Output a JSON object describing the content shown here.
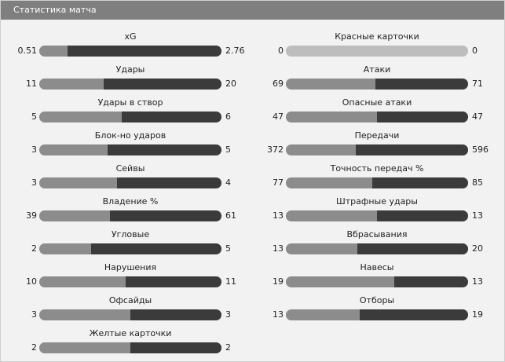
{
  "header": {
    "title": "Статистика матча"
  },
  "colors": {
    "home": "#8c8c8c",
    "away": "#3b3b3b",
    "empty": "#bdbdbd",
    "header_bg": "#7f7f7f"
  },
  "left_stats": [
    {
      "label": "xG",
      "home": "0.51",
      "away": "2.76",
      "home_value": 0.51,
      "away_value": 2.76
    },
    {
      "label": "Удары",
      "home": "11",
      "away": "20",
      "home_value": 11,
      "away_value": 20
    },
    {
      "label": "Удары в створ",
      "home": "5",
      "away": "6",
      "home_value": 5,
      "away_value": 6
    },
    {
      "label": "Блок-но ударов",
      "home": "3",
      "away": "5",
      "home_value": 3,
      "away_value": 5
    },
    {
      "label": "Сейвы",
      "home": "3",
      "away": "4",
      "home_value": 3,
      "away_value": 4
    },
    {
      "label": "Владение %",
      "home": "39",
      "away": "61",
      "home_value": 39,
      "away_value": 61
    },
    {
      "label": "Угловые",
      "home": "2",
      "away": "5",
      "home_value": 2,
      "away_value": 5
    },
    {
      "label": "Нарушения",
      "home": "10",
      "away": "11",
      "home_value": 10,
      "away_value": 11
    },
    {
      "label": "Офсайды",
      "home": "3",
      "away": "3",
      "home_value": 3,
      "away_value": 3
    },
    {
      "label": "Желтые карточки",
      "home": "2",
      "away": "2",
      "home_value": 2,
      "away_value": 2
    }
  ],
  "right_stats": [
    {
      "label": "Красные карточки",
      "home": "0",
      "away": "0",
      "home_value": 0,
      "away_value": 0
    },
    {
      "label": "Атаки",
      "home": "69",
      "away": "71",
      "home_value": 69,
      "away_value": 71
    },
    {
      "label": "Опасные атаки",
      "home": "47",
      "away": "47",
      "home_value": 47,
      "away_value": 47
    },
    {
      "label": "Передачи",
      "home": "372",
      "away": "596",
      "home_value": 372,
      "away_value": 596
    },
    {
      "label": "Точность передач %",
      "home": "77",
      "away": "85",
      "home_value": 77,
      "away_value": 85
    },
    {
      "label": "Штрафные удары",
      "home": "13",
      "away": "13",
      "home_value": 13,
      "away_value": 13
    },
    {
      "label": "Вбрасывания",
      "home": "13",
      "away": "20",
      "home_value": 13,
      "away_value": 20
    },
    {
      "label": "Навесы",
      "home": "19",
      "away": "13",
      "home_value": 19,
      "away_value": 13
    },
    {
      "label": "Отборы",
      "home": "13",
      "away": "19",
      "home_value": 13,
      "away_value": 19
    }
  ]
}
